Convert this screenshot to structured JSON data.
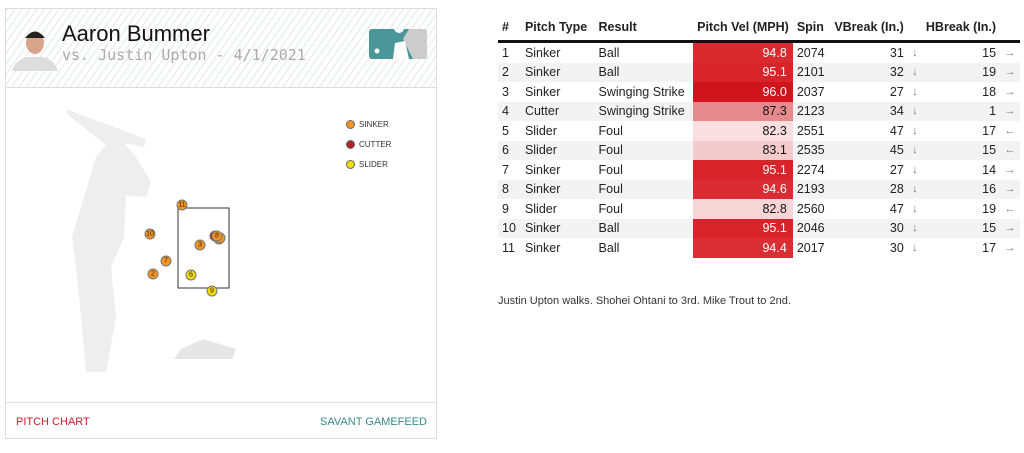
{
  "header": {
    "pitcher": "Aaron Bummer",
    "subtitle": "vs. Justin Upton - 4/1/2021"
  },
  "legend": [
    {
      "label": "SINKER",
      "color": "#f7941d"
    },
    {
      "label": "CUTTER",
      "color": "#b22222"
    },
    {
      "label": "SLIDER",
      "color": "#f5d90a"
    }
  ],
  "footer": {
    "left": "PITCH CHART",
    "right": "SAVANT GAMEFEED"
  },
  "table": {
    "headers": [
      "#",
      "Pitch Type",
      "Result",
      "Pitch Vel (MPH)",
      "Spin",
      "VBreak (In.)",
      "",
      "HBreak (In.)",
      ""
    ],
    "rows": [
      {
        "n": "1",
        "type": "Sinker",
        "result": "Ball",
        "vel": "94.8",
        "spin": "2074",
        "vb": "31",
        "vba": "↓",
        "hb": "15",
        "hba": "→",
        "bg": "#da2a30"
      },
      {
        "n": "2",
        "type": "Sinker",
        "result": "Ball",
        "vel": "95.1",
        "spin": "2101",
        "vb": "32",
        "vba": "↓",
        "hb": "19",
        "hba": "→",
        "bg": "#d8232a"
      },
      {
        "n": "3",
        "type": "Sinker",
        "result": "Swinging Strike",
        "vel": "96.0",
        "spin": "2037",
        "vb": "27",
        "vba": "↓",
        "hb": "18",
        "hba": "→",
        "bg": "#d0141c"
      },
      {
        "n": "4",
        "type": "Cutter",
        "result": "Swinging Strike",
        "vel": "87.3",
        "spin": "2123",
        "vb": "34",
        "vba": "↓",
        "hb": "1",
        "hba": "→",
        "bg": "#e68a8e"
      },
      {
        "n": "5",
        "type": "Slider",
        "result": "Foul",
        "vel": "82.3",
        "spin": "2551",
        "vb": "47",
        "vba": "↓",
        "hb": "17",
        "hba": "←",
        "bg": "#f9dfdf"
      },
      {
        "n": "6",
        "type": "Slider",
        "result": "Foul",
        "vel": "83.1",
        "spin": "2535",
        "vb": "45",
        "vba": "↓",
        "hb": "15",
        "hba": "←",
        "bg": "#f4cbcc"
      },
      {
        "n": "7",
        "type": "Sinker",
        "result": "Foul",
        "vel": "95.1",
        "spin": "2274",
        "vb": "27",
        "vba": "↓",
        "hb": "14",
        "hba": "→",
        "bg": "#d8232a"
      },
      {
        "n": "8",
        "type": "Sinker",
        "result": "Foul",
        "vel": "94.6",
        "spin": "2193",
        "vb": "28",
        "vba": "↓",
        "hb": "16",
        "hba": "→",
        "bg": "#da2c32"
      },
      {
        "n": "9",
        "type": "Slider",
        "result": "Foul",
        "vel": "82.8",
        "spin": "2560",
        "vb": "47",
        "vba": "↓",
        "hb": "19",
        "hba": "←",
        "bg": "#f6d5d6"
      },
      {
        "n": "10",
        "type": "Sinker",
        "result": "Ball",
        "vel": "95.1",
        "spin": "2046",
        "vb": "30",
        "vba": "↓",
        "hb": "15",
        "hba": "→",
        "bg": "#d8232a"
      },
      {
        "n": "11",
        "type": "Sinker",
        "result": "Ball",
        "vel": "94.4",
        "spin": "2017",
        "vb": "30",
        "vba": "↓",
        "hb": "17",
        "hba": "→",
        "bg": "#db2e34"
      }
    ]
  },
  "summary": "Justin Upton walks. Shohei Ohtani to 3rd. Mike Trout to 2nd."
}
